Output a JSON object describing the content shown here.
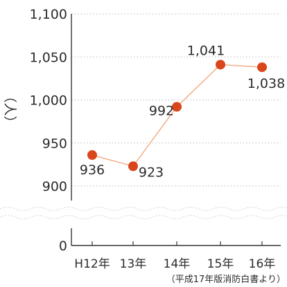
{
  "chart_data": {
    "type": "line",
    "ylabel": "（人）",
    "categories": [
      "H12年",
      "13年",
      "14年",
      "15年",
      "16年"
    ],
    "values": [
      936,
      923,
      992,
      1041,
      1038
    ],
    "data_labels": [
      "936",
      "923",
      "992",
      "1,041",
      "1,038"
    ],
    "y_ticks": [
      {
        "value": 0,
        "label": "0"
      },
      {
        "value": 900,
        "label": "900"
      },
      {
        "value": 950,
        "label": "950"
      },
      {
        "value": 1000,
        "label": "1,000"
      },
      {
        "value": 1050,
        "label": "1,050"
      },
      {
        "value": 1100,
        "label": "1,100"
      }
    ],
    "ylim": [
      0,
      1100
    ],
    "axis_break": [
      0,
      900
    ],
    "grid": "horizontal dotted",
    "legend": "none",
    "source_note": "（平成17年版消防白書より）",
    "colors": {
      "marker": "#d9461c",
      "line": "#f2a77a",
      "grid": "#b9b9b9",
      "axis": "#333333",
      "break": "#cfcfcf"
    }
  }
}
